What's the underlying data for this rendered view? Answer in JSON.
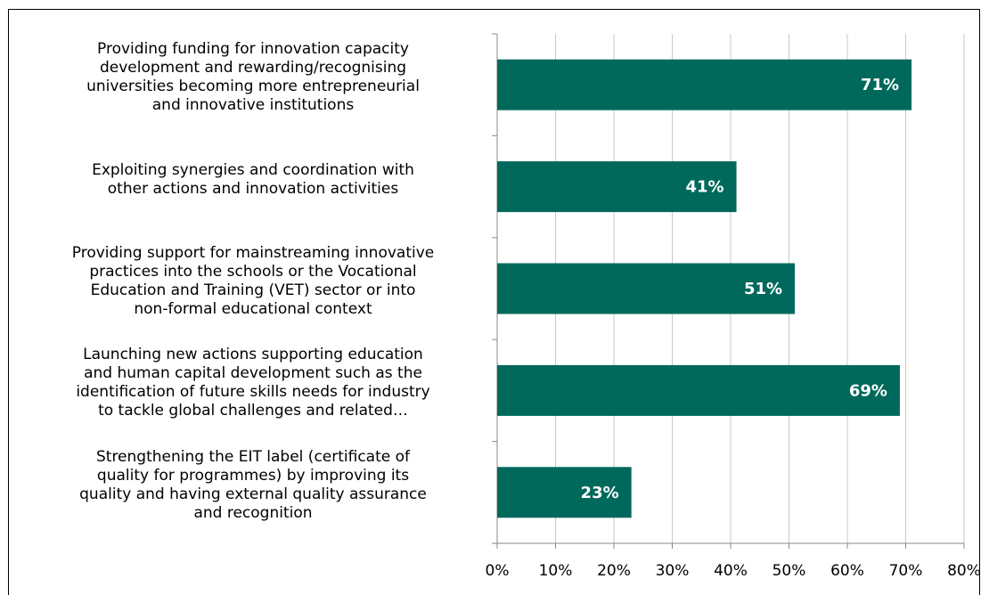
{
  "chart_data": {
    "type": "barh",
    "categories": [
      "Providing funding for innovation capacity\ndevelopment and rewarding/recognising\nuniversities becoming more entrepreneurial\nand innovative institutions",
      "Exploiting synergies and coordination with\nother actions and innovation activities",
      "Providing support for mainstreaming innovative\npractices into the schools or the Vocational\nEducation and Training (VET) sector or into\nnon-formal educational context",
      "Launching new actions supporting education\nand human capital development such as the\nidentification of future skills needs for industry\nto tackle global challenges and related…",
      "Strengthening the EIT label (certificate of\nquality for programmes) by improving its\nquality and having external quality assurance\nand recognition"
    ],
    "values": [
      71,
      41,
      51,
      69,
      23
    ],
    "value_labels": [
      "71%",
      "41%",
      "51%",
      "69%",
      "23%"
    ],
    "color": "#00695c",
    "xlim": [
      0,
      80
    ],
    "xticks": [
      {
        "value": 0,
        "label": "0%"
      },
      {
        "value": 10,
        "label": "10%"
      },
      {
        "value": 20,
        "label": "20%"
      },
      {
        "value": 30,
        "label": "30%"
      },
      {
        "value": 40,
        "label": "40%"
      },
      {
        "value": 50,
        "label": "50%"
      },
      {
        "value": 60,
        "label": "60%"
      },
      {
        "value": 70,
        "label": "70%"
      },
      {
        "value": 80,
        "label": "80%"
      }
    ],
    "grid": true
  }
}
